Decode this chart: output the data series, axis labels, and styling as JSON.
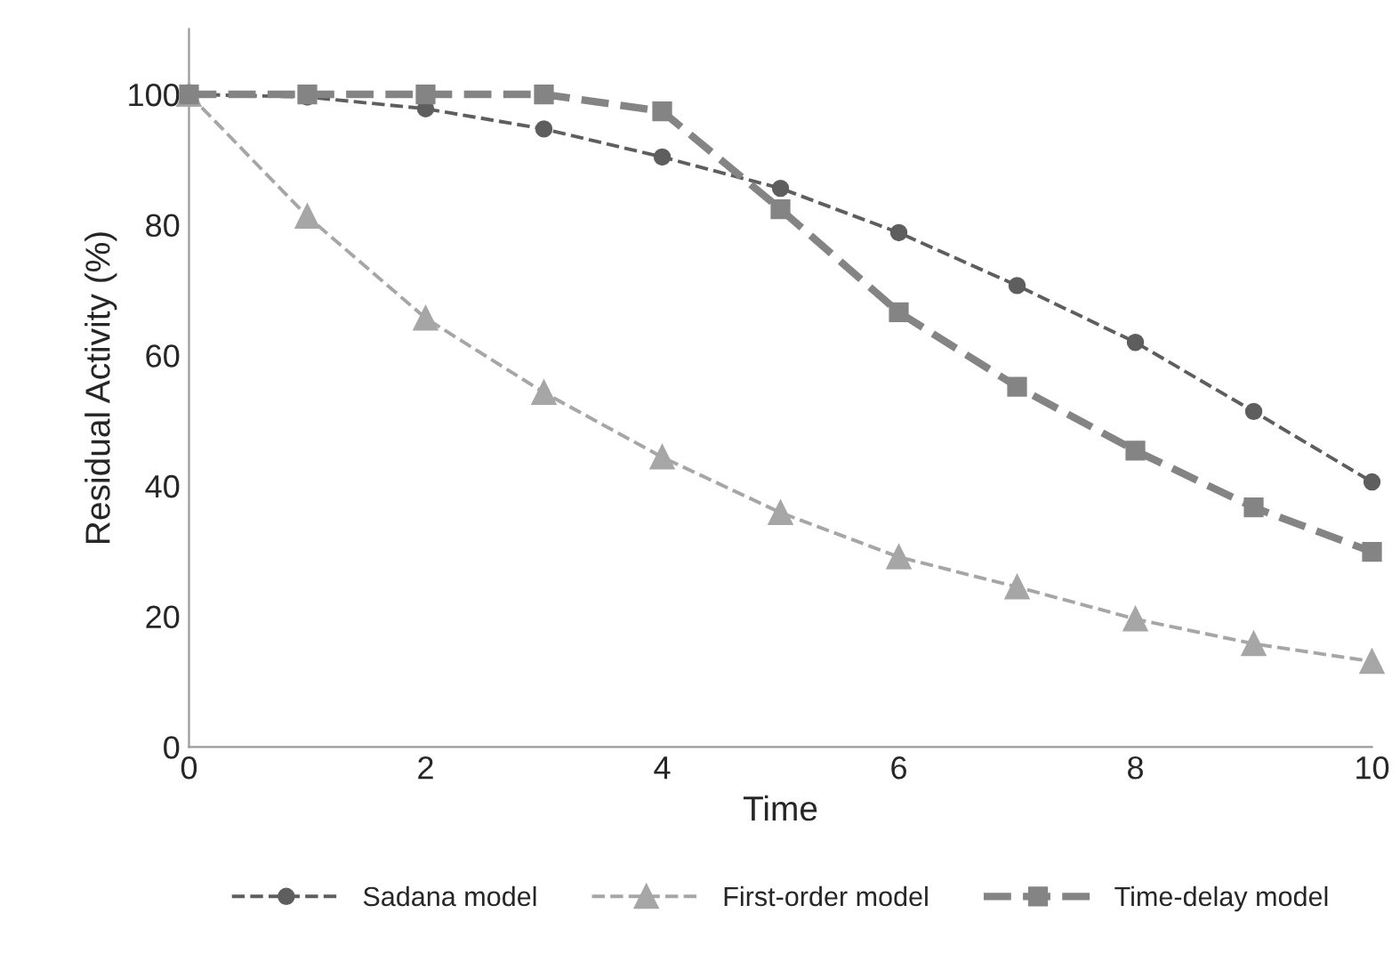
{
  "chart_data": {
    "type": "line",
    "xlabel": "Time",
    "ylabel": "Residual Activity (%)",
    "x": [
      0,
      1,
      2,
      3,
      4,
      5,
      6,
      7,
      8,
      9,
      10
    ],
    "series": [
      {
        "name": "Sadana model",
        "color": "#5e5e5e",
        "marker": "circle",
        "line_style": "dashed",
        "values": [
          100,
          99.6,
          97.8,
          94.7,
          90.4,
          85.6,
          78.8,
          70.7,
          62,
          51.4,
          40.6
        ]
      },
      {
        "name": "First-order model",
        "color": "#a6a6a6",
        "marker": "triangle",
        "line_style": "dashed",
        "values": [
          100,
          81.3,
          65.7,
          54.3,
          44.4,
          35.9,
          29.1,
          24.5,
          19.6,
          15.8,
          13.1
        ]
      },
      {
        "name": "Time-delay model",
        "color": "#848484",
        "marker": "square",
        "line_style": "dashed",
        "values": [
          100,
          100,
          100,
          100,
          97.4,
          82.4,
          66.6,
          55.2,
          45.4,
          36.7,
          29.9
        ]
      }
    ],
    "xlim": [
      0,
      10
    ],
    "xticks": [
      0,
      2,
      4,
      6,
      8,
      10
    ],
    "ylim": [
      0,
      110
    ],
    "yticks": [
      0,
      20,
      40,
      60,
      80,
      100
    ],
    "grid": false,
    "legend": "bottom"
  }
}
